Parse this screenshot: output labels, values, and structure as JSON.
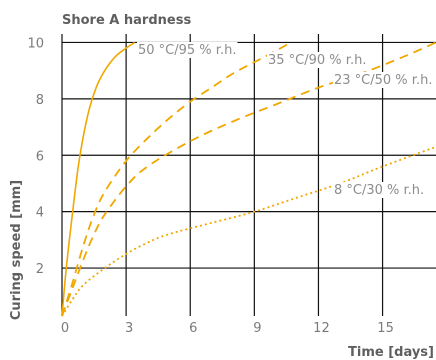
{
  "chart_data": {
    "type": "line",
    "title": "Shore A hardness",
    "xlabel": "Time [days]",
    "ylabel": "Curing speed [mm]",
    "xlim": [
      0,
      17.5
    ],
    "ylim": [
      0.3,
      10.3
    ],
    "x_ticks": [
      0,
      3,
      6,
      9,
      12,
      15
    ],
    "y_ticks": [
      2,
      4,
      6,
      8,
      10
    ],
    "grid": true,
    "line_color": "#f0a800",
    "series": [
      {
        "name": "50 °C/95 % r.h.",
        "style": "solid",
        "points": [
          [
            0,
            0.3
          ],
          [
            0.2,
            2.0
          ],
          [
            0.5,
            4.0
          ],
          [
            0.8,
            5.8
          ],
          [
            1.2,
            7.4
          ],
          [
            1.6,
            8.4
          ],
          [
            2.0,
            9.0
          ],
          [
            2.5,
            9.5
          ],
          [
            3.0,
            9.8
          ],
          [
            3.4,
            10.0
          ]
        ]
      },
      {
        "name": "35 °C/90 % r.h.",
        "style": "dashed",
        "points": [
          [
            0,
            0.3
          ],
          [
            0.5,
            1.5
          ],
          [
            1.0,
            2.8
          ],
          [
            1.5,
            3.9
          ],
          [
            2.0,
            4.7
          ],
          [
            3.0,
            5.8
          ],
          [
            4.0,
            6.6
          ],
          [
            5.0,
            7.3
          ],
          [
            6.0,
            7.9
          ],
          [
            7.0,
            8.4
          ],
          [
            8.0,
            8.9
          ],
          [
            9.0,
            9.3
          ],
          [
            10.0,
            9.7
          ],
          [
            10.7,
            10.0
          ]
        ]
      },
      {
        "name": "23 °C/50 % r.h.",
        "style": "dashed",
        "points": [
          [
            0,
            0.3
          ],
          [
            0.5,
            1.3
          ],
          [
            1.0,
            2.3
          ],
          [
            1.5,
            3.2
          ],
          [
            2.0,
            3.9
          ],
          [
            3.0,
            4.9
          ],
          [
            4.0,
            5.6
          ],
          [
            6.0,
            6.5
          ],
          [
            8.0,
            7.2
          ],
          [
            10.0,
            7.8
          ],
          [
            12.0,
            8.4
          ],
          [
            14.0,
            8.9
          ],
          [
            16.0,
            9.5
          ],
          [
            17.5,
            10.0
          ]
        ]
      },
      {
        "name": "8 °C/30 % r.h.",
        "style": "dotted",
        "points": [
          [
            0,
            0.3
          ],
          [
            0.5,
            0.9
          ],
          [
            1.0,
            1.4
          ],
          [
            2.0,
            2.0
          ],
          [
            3.0,
            2.5
          ],
          [
            4.0,
            2.9
          ],
          [
            5.0,
            3.2
          ],
          [
            7.0,
            3.6
          ],
          [
            9.0,
            4.0
          ],
          [
            11.0,
            4.5
          ],
          [
            13.0,
            5.0
          ],
          [
            15.0,
            5.6
          ],
          [
            17.5,
            6.3
          ]
        ]
      }
    ]
  }
}
